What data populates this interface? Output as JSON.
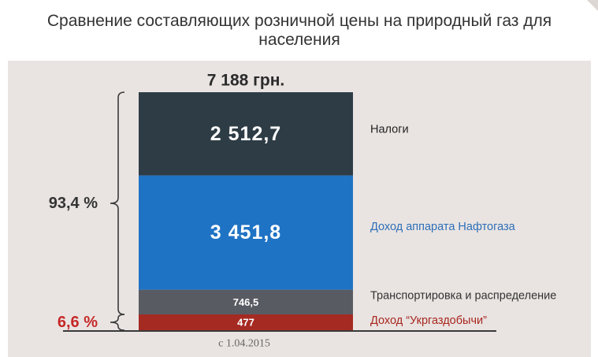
{
  "chart_data": {
    "type": "bar",
    "title": "Сравнение составляющих розничной цены на природный газ для населения",
    "total_label": "7 188 грн.",
    "date_label": "с 1.04.2015",
    "stacked": true,
    "series": [
      {
        "name": "Доход “Укргаздобычи”",
        "value": 477,
        "value_label": "477",
        "color": "#a52a22",
        "label_color": "#a8261e"
      },
      {
        "name": "Транспортировка и распределение",
        "value": 746.5,
        "value_label": "746,5",
        "color": "#595b62",
        "label_color": "#333333"
      },
      {
        "name": "Доход аппарата Нафтогаза",
        "value": 3451.8,
        "value_label": "3 451,8",
        "color": "#1f73c4",
        "label_color": "#2e6fb8"
      },
      {
        "name": "Налоги",
        "value": 2512.7,
        "value_label": "2 512,7",
        "color": "#2e3c45",
        "label_color": "#222222"
      }
    ],
    "shares": [
      {
        "label": "6,6 %",
        "color": "#c62828",
        "covers": [
          0
        ]
      },
      {
        "label": "93,4 %",
        "color": "#333333",
        "covers": [
          1,
          2,
          3
        ]
      }
    ]
  },
  "colors": {
    "plot_background": "#e9e4e2",
    "bracket": "#3a3a3a"
  }
}
